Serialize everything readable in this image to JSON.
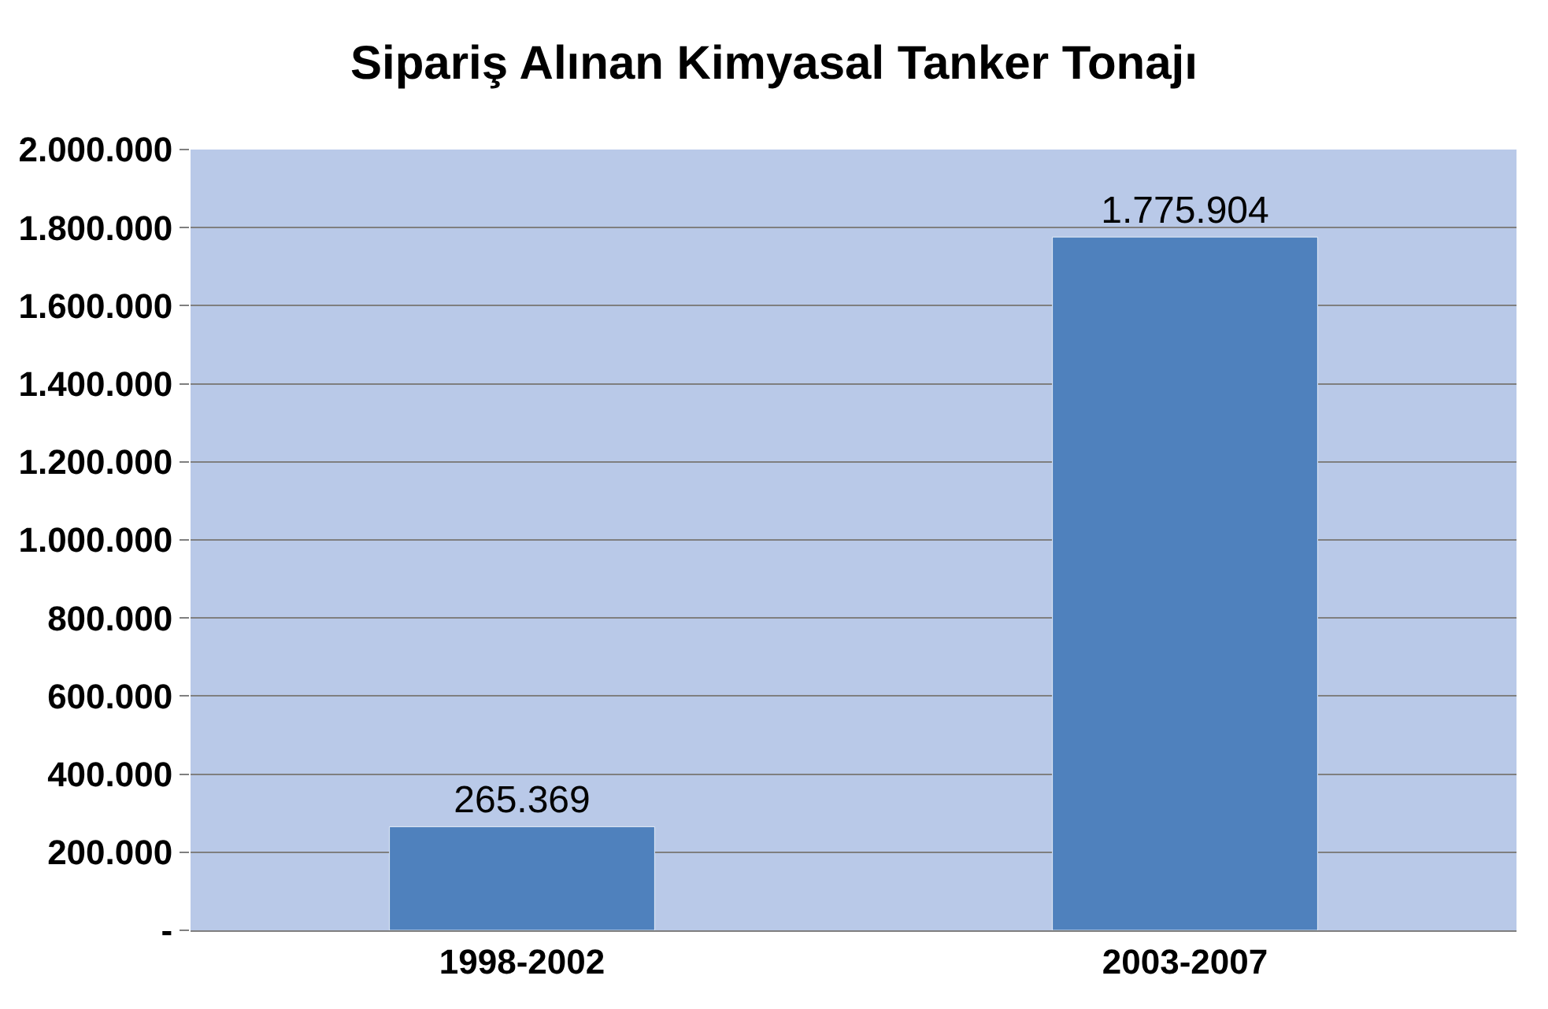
{
  "chart_data": {
    "type": "bar",
    "title": "Sipariş Alınan Kimyasal Tanker Tonajı",
    "categories": [
      "1998-2002",
      "2003-2007"
    ],
    "values": [
      265369,
      1775904
    ],
    "value_labels": [
      "265.369",
      "1.775.904"
    ],
    "color": "#4f81bd",
    "ylim": [
      0,
      2000000
    ],
    "yticks": [
      {
        "value": 0,
        "label": "-"
      },
      {
        "value": 200000,
        "label": "200.000"
      },
      {
        "value": 400000,
        "label": "400.000"
      },
      {
        "value": 600000,
        "label": "600.000"
      },
      {
        "value": 800000,
        "label": "800.000"
      },
      {
        "value": 1000000,
        "label": "1.000.000"
      },
      {
        "value": 1200000,
        "label": "1.200.000"
      },
      {
        "value": 1400000,
        "label": "1.400.000"
      },
      {
        "value": 1600000,
        "label": "1.600.000"
      },
      {
        "value": 1800000,
        "label": "1.800.000"
      },
      {
        "value": 2000000,
        "label": "2.000.000"
      }
    ],
    "grid": "y"
  }
}
